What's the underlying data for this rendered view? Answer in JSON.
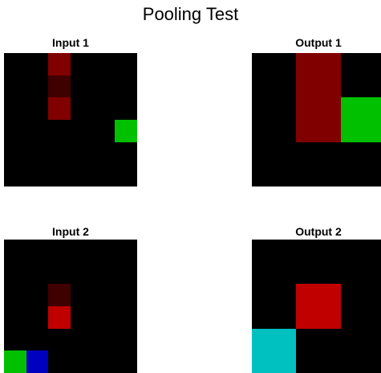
{
  "title": "Pooling Test",
  "panels": {
    "input1": {
      "label": "Input 1",
      "rows": 6,
      "cols": 6,
      "cells": [
        [
          "#000000",
          "#000000",
          "#800000",
          "#000000",
          "#000000",
          "#000000"
        ],
        [
          "#000000",
          "#000000",
          "#400000",
          "#000000",
          "#000000",
          "#000000"
        ],
        [
          "#000000",
          "#000000",
          "#800000",
          "#000000",
          "#000000",
          "#000000"
        ],
        [
          "#000000",
          "#000000",
          "#000000",
          "#000000",
          "#000000",
          "#00c000"
        ],
        [
          "#000000",
          "#000000",
          "#000000",
          "#000000",
          "#000000",
          "#000000"
        ],
        [
          "#000000",
          "#000000",
          "#000000",
          "#000000",
          "#000000",
          "#000000"
        ]
      ]
    },
    "output1": {
      "label": "Output 1",
      "rows": 3,
      "cols": 3,
      "cells": [
        [
          "#000000",
          "#800000",
          "#000000"
        ],
        [
          "#000000",
          "#800000",
          "#00c000"
        ],
        [
          "#000000",
          "#000000",
          "#000000"
        ]
      ]
    },
    "input2": {
      "label": "Input 2",
      "rows": 6,
      "cols": 6,
      "cells": [
        [
          "#000000",
          "#000000",
          "#000000",
          "#000000",
          "#000000",
          "#000000"
        ],
        [
          "#000000",
          "#000000",
          "#000000",
          "#000000",
          "#000000",
          "#000000"
        ],
        [
          "#000000",
          "#000000",
          "#400000",
          "#000000",
          "#000000",
          "#000000"
        ],
        [
          "#000000",
          "#000000",
          "#c00000",
          "#000000",
          "#000000",
          "#000000"
        ],
        [
          "#000000",
          "#000000",
          "#000000",
          "#000000",
          "#000000",
          "#000000"
        ],
        [
          "#00c000",
          "#0000c0",
          "#000000",
          "#000000",
          "#000000",
          "#000000"
        ]
      ]
    },
    "output2": {
      "label": "Output 2",
      "rows": 3,
      "cols": 3,
      "cells": [
        [
          "#000000",
          "#000000",
          "#000000"
        ],
        [
          "#000000",
          "#c00000",
          "#000000"
        ],
        [
          "#00c0c0",
          "#000000",
          "#000000"
        ]
      ]
    }
  }
}
